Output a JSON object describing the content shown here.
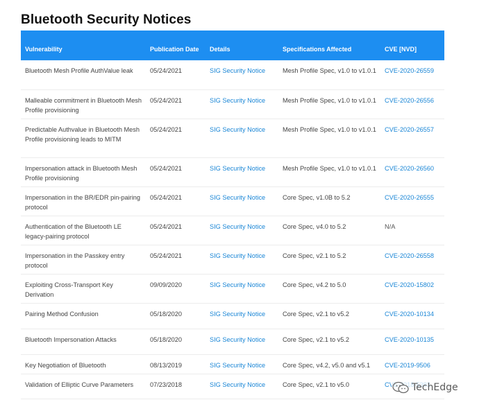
{
  "page": {
    "title": "Bluetooth Security Notices"
  },
  "table": {
    "headers": {
      "vulnerability": "Vulnerability",
      "publication_date": "Publication Date",
      "details": "Details",
      "specifications": "Specifications Affected",
      "cve": "CVE [NVD]"
    },
    "rows": [
      {
        "vulnerability": "Bluetooth Mesh Profile AuthValue leak",
        "date": "05/24/2021",
        "details": "SIG Security Notice",
        "spec": "Mesh Profile Spec, v1.0 to v1.0.1",
        "cve": "CVE-2020-26559"
      },
      {
        "vulnerability": "Malleable commitment in Bluetooth Mesh Profile provisioning",
        "date": "05/24/2021",
        "details": "SIG Security Notice",
        "spec": "Mesh Profile Spec, v1.0 to v1.0.1",
        "cve": "CVE-2020-26556"
      },
      {
        "vulnerability": "Predictable Authvalue in Bluetooth Mesh Profile provisioning leads to MITM",
        "date": "05/24/2021",
        "details": "SIG Security Notice",
        "spec": "Mesh Profile Spec, v1.0 to v1.0.1",
        "cve": "CVE-2020-26557"
      },
      {
        "vulnerability": "Impersonation attack in Bluetooth Mesh Profile provisioning",
        "date": "05/24/2021",
        "details": "SIG Security Notice",
        "spec": "Mesh Profile Spec, v1.0 to v1.0.1",
        "cve": "CVE-2020-26560"
      },
      {
        "vulnerability": "Impersonation in the BR/EDR pin-pairing protocol",
        "date": "05/24/2021",
        "details": "SIG Security Notice",
        "spec": "Core Spec, v1.0B to 5.2",
        "cve": "CVE-2020-26555"
      },
      {
        "vulnerability": "Authentication of the Bluetooth LE legacy-pairing protocol",
        "date": "05/24/2021",
        "details": "SIG Security Notice",
        "spec": "Core Spec, v4.0 to 5.2",
        "cve": "N/A"
      },
      {
        "vulnerability": "Impersonation in the Passkey entry protocol",
        "date": "05/24/2021",
        "details": "SIG Security Notice",
        "spec": "Core Spec, v2.1 to 5.2",
        "cve": "CVE-2020-26558"
      },
      {
        "vulnerability": "Exploiting Cross-Transport Key Derivation",
        "date": "09/09/2020",
        "details": "SIG Security Notice",
        "spec": "Core Spec, v4.2 to 5.0",
        "cve": "CVE-2020-15802"
      },
      {
        "vulnerability": "Pairing Method Confusion",
        "date": "05/18/2020",
        "details": "SIG Security Notice",
        "spec": "Core Spec, v2.1 to v5.2",
        "cve": "CVE-2020-10134"
      },
      {
        "vulnerability": "Bluetooth Impersonation Attacks",
        "date": "05/18/2020",
        "details": "SIG Security Notice",
        "spec": "Core Spec, v2.1 to v5.2",
        "cve": "CVE-2020-10135"
      },
      {
        "vulnerability": "Key Negotiation of Bluetooth",
        "date": "08/13/2019",
        "details": "SIG Security Notice",
        "spec": "Core Spec, v4.2, v5.0 and v5.1",
        "cve": "CVE-2019-9506"
      },
      {
        "vulnerability": "Validation of Elliptic Curve Parameters",
        "date": "07/23/2018",
        "details": "SIG Security Notice",
        "spec": "Core Spec, v2.1 to v5.0",
        "cve": "CVE-2018-5383"
      }
    ]
  },
  "watermark": {
    "text": "TechEdge",
    "icon": "wechat-icon"
  }
}
